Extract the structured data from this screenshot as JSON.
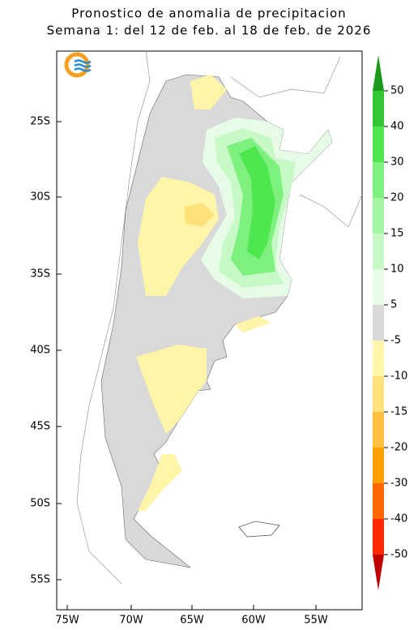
{
  "map": {
    "title": [
      "Pronostico de anomalia de precipitacion",
      "Semana 1: del 12 de feb. al 18 de feb. de 2026"
    ],
    "lat_labels": [
      "25S",
      "30S",
      "35S",
      "40S",
      "45S",
      "50S",
      "55S"
    ],
    "lon_labels": [
      "75W",
      "70W",
      "65W",
      "60W",
      "55W"
    ],
    "colorbar": {
      "ticks": [
        50,
        40,
        30,
        20,
        15,
        10,
        5,
        -5,
        -10,
        -15,
        -20,
        -30,
        -40,
        -50
      ],
      "colors": [
        "#1a991a",
        "#33c833",
        "#4ee64e",
        "#7ef07e",
        "#a2f5a2",
        "#c6f9c6",
        "#e6fce6",
        "#d9d9d9",
        "#fff5a8",
        "#ffe17a",
        "#ffc040",
        "#ffa000",
        "#ff6600",
        "#ff2a00",
        "#c00000"
      ]
    }
  }
}
